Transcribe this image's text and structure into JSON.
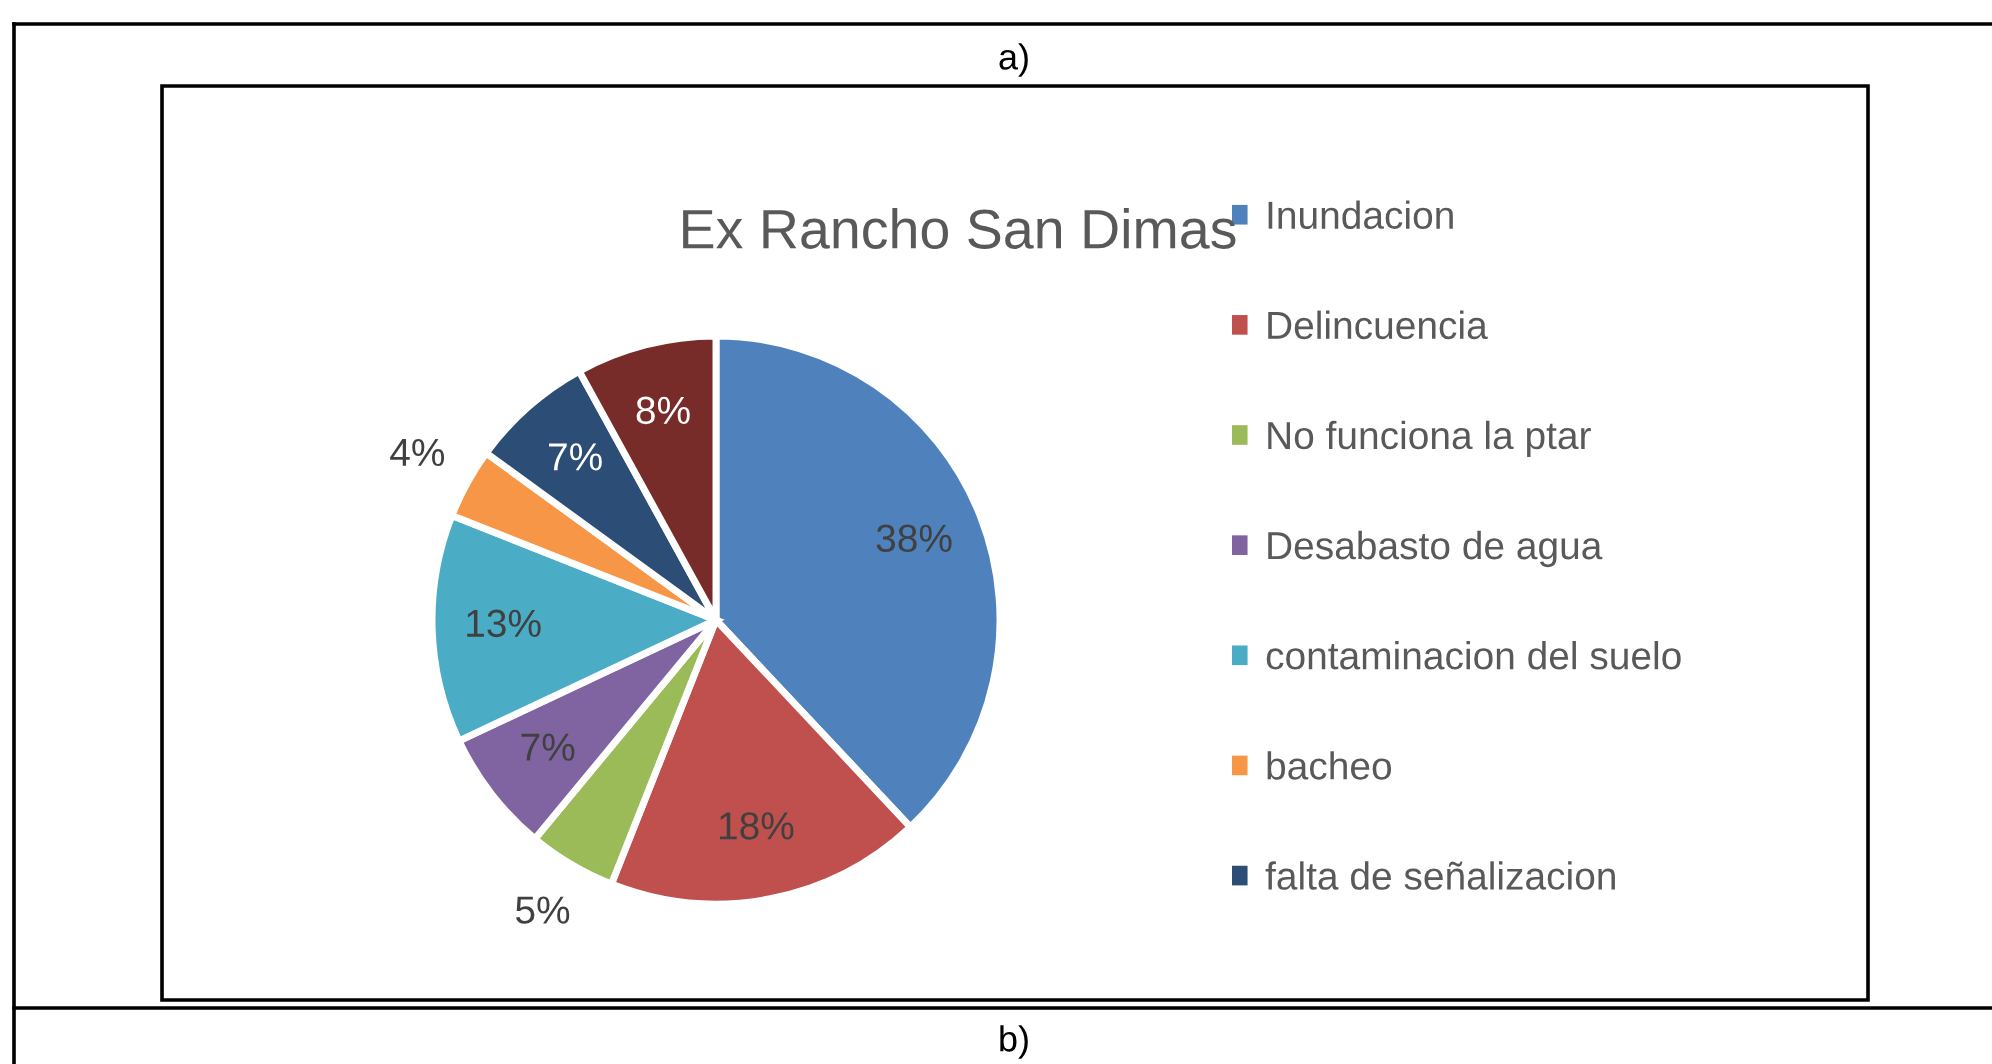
{
  "chart_data": {
    "type": "pie",
    "title": "Ex Rancho San Dimas",
    "categories": [
      "Inundacion",
      "Delincuencia",
      "No funciona la ptar",
      "Desabasto de agua",
      "contaminacion del suelo",
      "bacheo",
      "falta de señalizacion",
      null
    ],
    "values": [
      38,
      18,
      5,
      7,
      13,
      4,
      7,
      8
    ],
    "colors": [
      "#4f81bd",
      "#c0504d",
      "#9bbb59",
      "#8064a2",
      "#4bacc6",
      "#f79646",
      "#2c4d75",
      "#772c2a"
    ],
    "value_labels": [
      "38%",
      "18%",
      "5%",
      "7%",
      "13%",
      "4%",
      "7%",
      "8%"
    ],
    "legend": "right",
    "annotations": [
      "a)",
      "b)"
    ]
  }
}
